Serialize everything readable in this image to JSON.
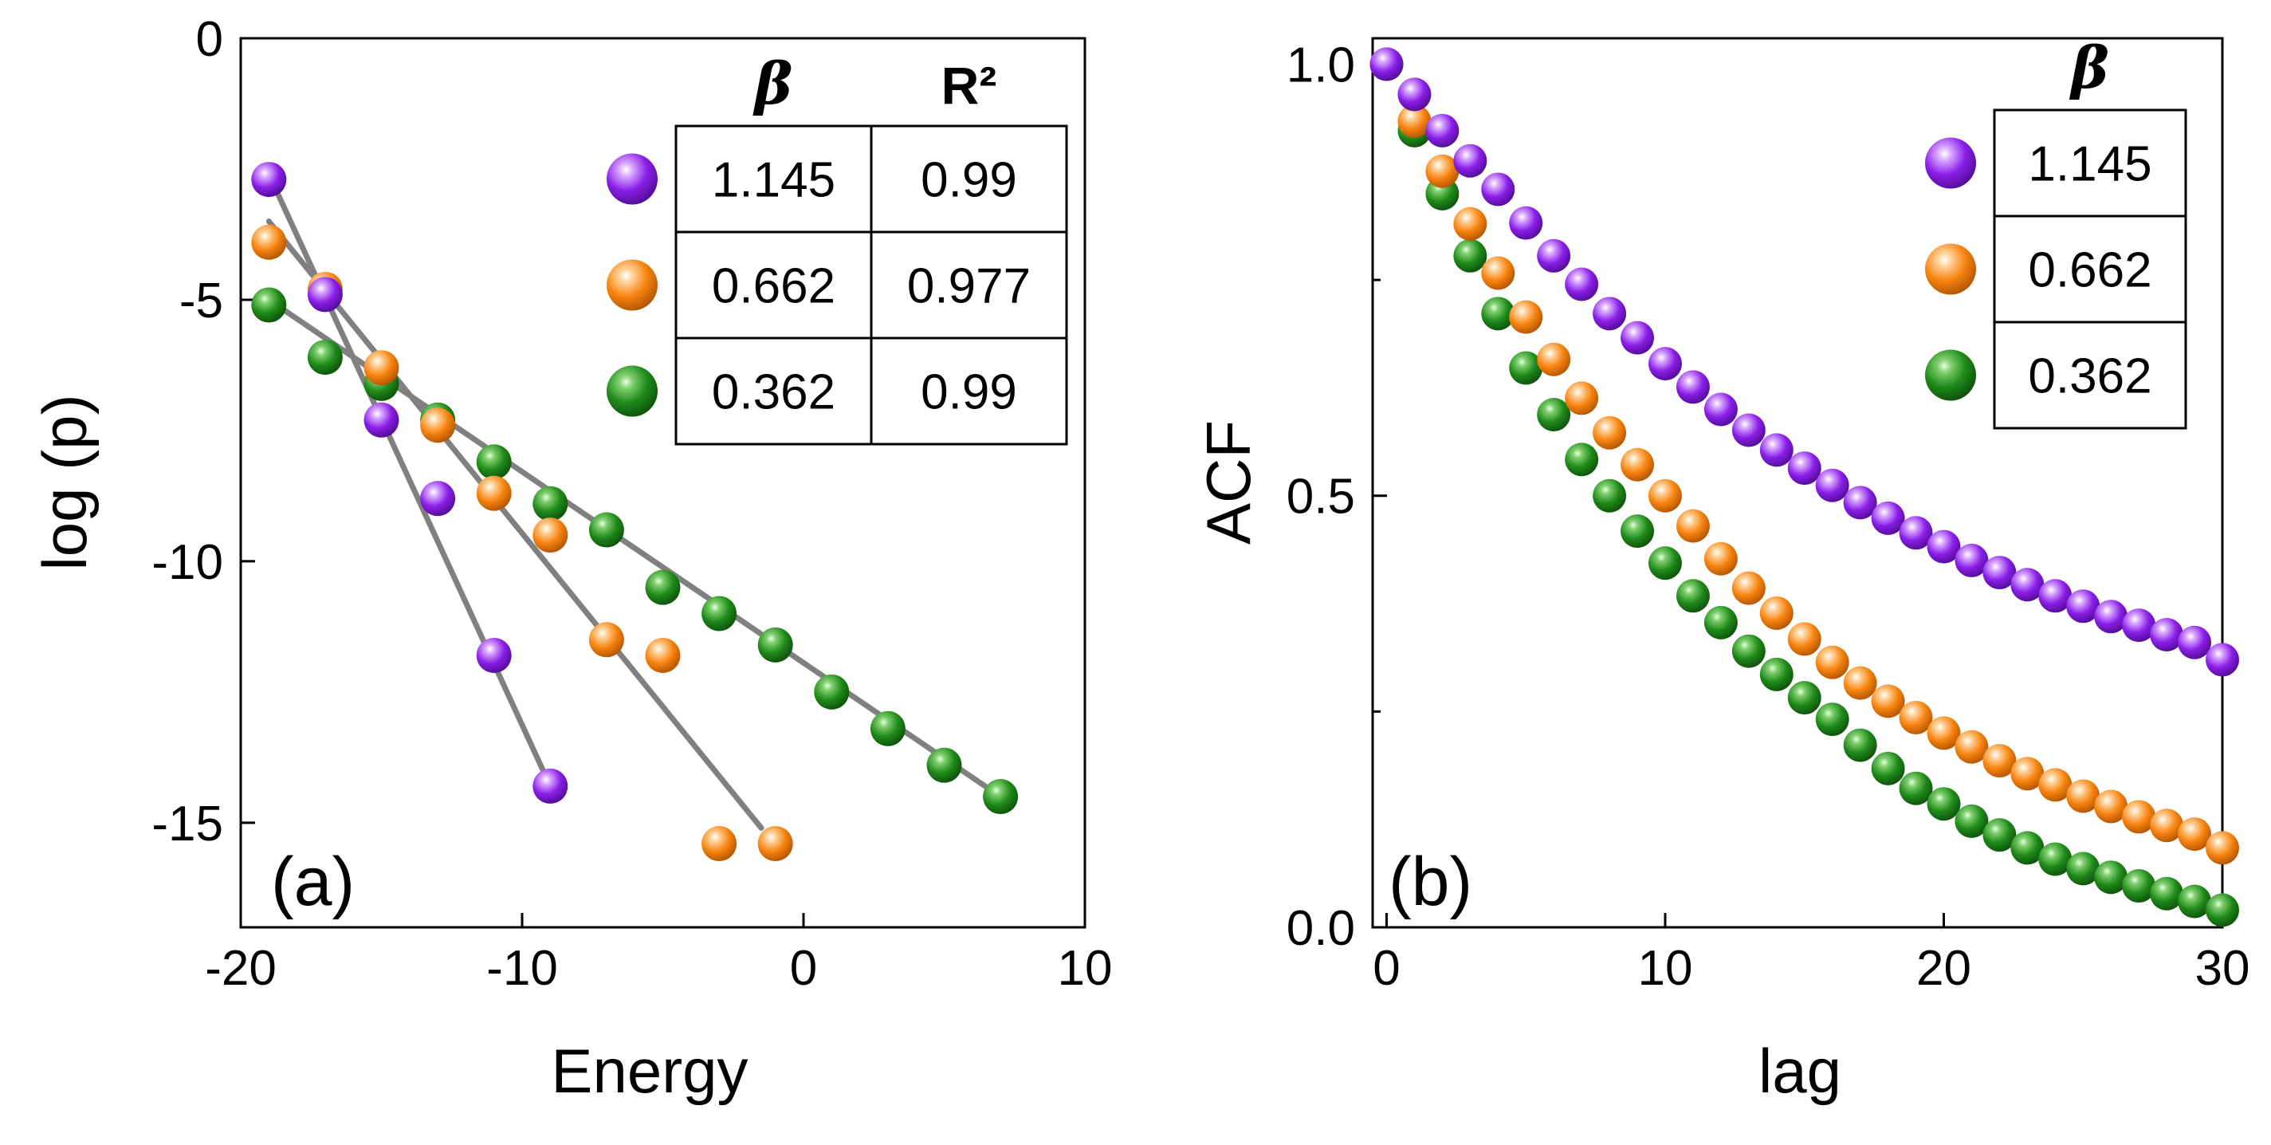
{
  "colors": {
    "purple": "#8a1ee8",
    "orange": "#f7830f",
    "green": "#1f8a1a",
    "fit_line": "#808080"
  },
  "chart_data": [
    {
      "type": "scatter",
      "panel_label": "(a)",
      "xlabel": "Energy",
      "ylabel": "log (p)",
      "xlim": [
        -20,
        10
      ],
      "ylim": [
        -17,
        0
      ],
      "xticks": [
        -20,
        -10,
        0,
        10
      ],
      "xtick_labels": [
        "-20",
        "-10",
        "0",
        "10"
      ],
      "yticks": [
        0,
        -5,
        -10,
        -15
      ],
      "ytick_labels": [
        "0",
        "-5",
        "-10",
        "-15"
      ],
      "series": [
        {
          "color": "purple",
          "beta": "1.145",
          "r2": "0.99",
          "x": [
            -19,
            -17,
            -15,
            -13,
            -11,
            -9
          ],
          "y": [
            -2.7,
            -4.9,
            -7.3,
            -8.8,
            -11.8,
            -14.3
          ],
          "fit": {
            "x": [
              -19,
              -9
            ],
            "y": [
              -2.6,
              -14.3
            ]
          }
        },
        {
          "color": "orange",
          "beta": "0.662",
          "r2": "0.977",
          "x": [
            -19,
            -17,
            -15,
            -13,
            -11,
            -9,
            -7,
            -5,
            -3,
            -1
          ],
          "y": [
            -3.9,
            -4.8,
            -6.3,
            -7.4,
            -8.7,
            -9.5,
            -11.5,
            -11.8,
            -15.4,
            -15.4
          ],
          "fit": {
            "x": [
              -19,
              -1.5
            ],
            "y": [
              -3.5,
              -15.1
            ]
          }
        },
        {
          "color": "green",
          "beta": "0.362",
          "r2": "0.99",
          "x": [
            -19,
            -17,
            -15,
            -13,
            -11,
            -9,
            -7,
            -5,
            -3,
            -1,
            1,
            3,
            5,
            7
          ],
          "y": [
            -5.1,
            -6.1,
            -6.6,
            -7.3,
            -8.1,
            -8.9,
            -9.4,
            -10.5,
            -11.0,
            -11.6,
            -12.5,
            -13.2,
            -13.9,
            -14.5
          ],
          "fit": {
            "x": [
              -19,
              7
            ],
            "y": [
              -5.0,
              -14.5
            ]
          }
        }
      ],
      "legend_table": {
        "headers": [
          "β",
          "R²"
        ],
        "placement": "top-right",
        "rows": [
          {
            "color": "purple",
            "cells": [
              "1.145",
              "0.99"
            ]
          },
          {
            "color": "orange",
            "cells": [
              "0.662",
              "0.977"
            ]
          },
          {
            "color": "green",
            "cells": [
              "0.362",
              "0.99"
            ]
          }
        ]
      }
    },
    {
      "type": "scatter",
      "panel_label": "(b)",
      "xlabel": "lag",
      "ylabel": "ACF",
      "xlim": [
        -0.5,
        30
      ],
      "ylim": [
        0,
        1.03
      ],
      "xticks": [
        0,
        10,
        20,
        30
      ],
      "xtick_labels": [
        "0",
        "10",
        "20",
        "30"
      ],
      "yticks": [
        0,
        0.5,
        1.0
      ],
      "ytick_labels": [
        "0.0",
        "0.5",
        "1.0"
      ],
      "yminor": [
        0.25,
        0.75
      ],
      "series": [
        {
          "color": "purple",
          "beta": "1.145",
          "x": [
            0,
            1,
            2,
            3,
            4,
            5,
            6,
            7,
            8,
            9,
            10,
            11,
            12,
            13,
            14,
            15,
            16,
            17,
            18,
            19,
            20,
            21,
            22,
            23,
            24,
            25,
            26,
            27,
            28,
            29,
            30
          ],
          "y": [
            1.0,
            0.965,
            0.923,
            0.888,
            0.855,
            0.816,
            0.778,
            0.745,
            0.711,
            0.683,
            0.653,
            0.626,
            0.6,
            0.576,
            0.553,
            0.532,
            0.512,
            0.492,
            0.474,
            0.457,
            0.441,
            0.425,
            0.411,
            0.397,
            0.384,
            0.372,
            0.36,
            0.35,
            0.339,
            0.33,
            0.31
          ]
        },
        {
          "color": "orange",
          "beta": "0.662",
          "x": [
            0,
            1,
            2,
            3,
            4,
            5,
            6,
            7,
            8,
            9,
            10,
            11,
            12,
            13,
            14,
            15,
            16,
            17,
            18,
            19,
            20,
            21,
            22,
            23,
            24,
            25,
            26,
            27,
            28,
            29,
            30
          ],
          "y": [
            1.0,
            0.934,
            0.876,
            0.815,
            0.758,
            0.707,
            0.658,
            0.613,
            0.573,
            0.536,
            0.5,
            0.465,
            0.427,
            0.393,
            0.364,
            0.334,
            0.307,
            0.283,
            0.262,
            0.243,
            0.225,
            0.209,
            0.193,
            0.178,
            0.165,
            0.152,
            0.14,
            0.128,
            0.118,
            0.108,
            0.092
          ]
        },
        {
          "color": "green",
          "beta": "0.362",
          "x": [
            0,
            1,
            2,
            3,
            4,
            5,
            6,
            7,
            8,
            9,
            10,
            11,
            12,
            13,
            14,
            15,
            16,
            17,
            18,
            19,
            20,
            21,
            22,
            23,
            24,
            25,
            26,
            27,
            28,
            29,
            30
          ],
          "y": [
            1.0,
            0.923,
            0.85,
            0.778,
            0.711,
            0.648,
            0.594,
            0.542,
            0.5,
            0.459,
            0.422,
            0.384,
            0.353,
            0.32,
            0.293,
            0.266,
            0.241,
            0.211,
            0.184,
            0.161,
            0.143,
            0.123,
            0.107,
            0.092,
            0.079,
            0.068,
            0.058,
            0.048,
            0.039,
            0.03,
            0.02
          ]
        }
      ],
      "legend_table": {
        "headers": [
          "β"
        ],
        "placement": "top-right",
        "rows": [
          {
            "color": "purple",
            "cells": [
              "1.145"
            ]
          },
          {
            "color": "orange",
            "cells": [
              "0.662"
            ]
          },
          {
            "color": "green",
            "cells": [
              "0.362"
            ]
          }
        ]
      }
    }
  ]
}
